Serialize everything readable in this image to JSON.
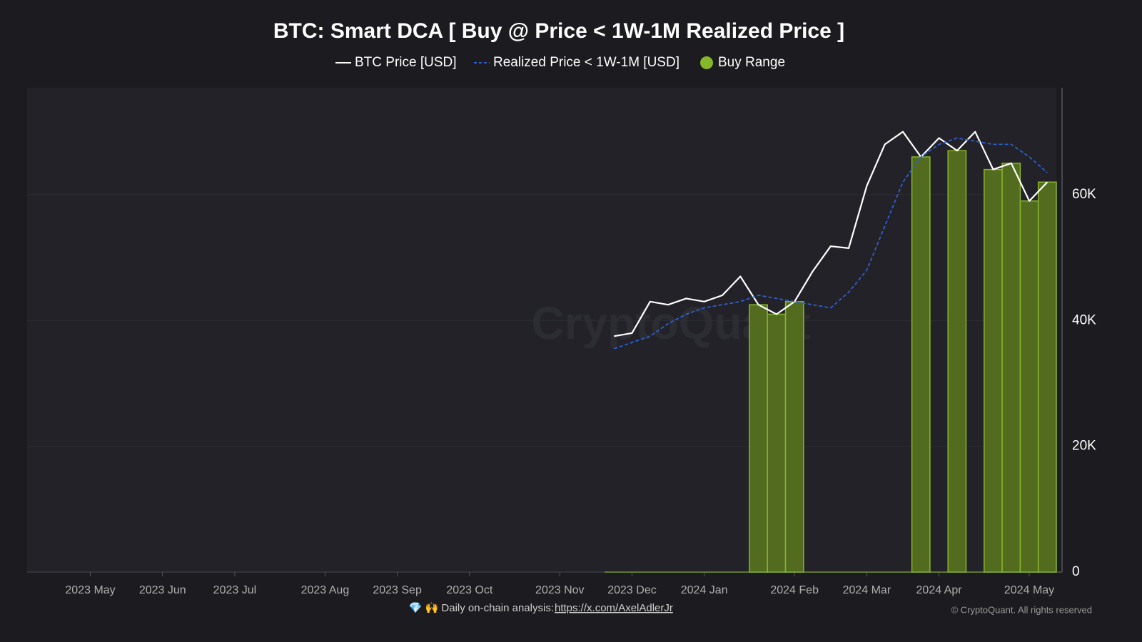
{
  "chart_data": {
    "type": "line",
    "title": "BTC: Smart DCA [ Buy @ Price < 1W-1M Realized Price ]",
    "watermark": "CryptoQuant",
    "footer": {
      "prefix": "💎 🙌  Daily on-chain analysis: ",
      "link": "https://x.com/AxelAdlerJr",
      "copyright": "© CryptoQuant. All rights reserved"
    },
    "categories": [
      null,
      null,
      null,
      "2023 May",
      null,
      null,
      null,
      "2023 Jun",
      null,
      null,
      null,
      "2023 Jul",
      null,
      null,
      null,
      null,
      "2023 Aug",
      null,
      null,
      null,
      "2023 Sep",
      null,
      null,
      null,
      "2023 Oct",
      null,
      null,
      null,
      null,
      "2023 Nov",
      null,
      null,
      null,
      "2023 Dec",
      null,
      null,
      null,
      "2024 Jan",
      null,
      null,
      null,
      null,
      "2024 Feb",
      null,
      null,
      null,
      "2024 Mar",
      null,
      null,
      null,
      "2024 Apr",
      null,
      null,
      null,
      null,
      "2024 May",
      null
    ],
    "series": [
      {
        "name": "BTC Price [USD]",
        "color": "#ffffff",
        "style": "solid",
        "values": [
          null,
          null,
          null,
          null,
          null,
          null,
          null,
          null,
          null,
          null,
          null,
          null,
          null,
          null,
          null,
          null,
          null,
          null,
          null,
          null,
          null,
          null,
          null,
          null,
          null,
          null,
          null,
          null,
          null,
          null,
          null,
          null,
          37500,
          38000,
          43000,
          42500,
          43500,
          43000,
          44000,
          47000,
          42500,
          41000,
          43000,
          47800,
          51800,
          51500,
          61400,
          68000,
          70000,
          66000,
          69000,
          67000,
          70000,
          64000,
          65000,
          59000,
          62000
        ]
      },
      {
        "name": "Realized Price < 1W-1M [USD]",
        "color": "#2f5fd0",
        "style": "dashed",
        "values": [
          null,
          null,
          null,
          null,
          null,
          null,
          null,
          null,
          null,
          null,
          null,
          null,
          null,
          null,
          null,
          null,
          null,
          null,
          null,
          null,
          null,
          null,
          null,
          null,
          null,
          null,
          null,
          null,
          null,
          null,
          null,
          null,
          35500,
          36500,
          37500,
          39500,
          41000,
          42000,
          42500,
          43000,
          44000,
          43500,
          43000,
          42500,
          42000,
          44500,
          48000,
          55000,
          62000,
          66000,
          68000,
          69000,
          68500,
          68000,
          68000,
          66000,
          63500
        ]
      },
      {
        "name": "Buy Range",
        "color": "#86b62a",
        "style": "area",
        "values": [
          null,
          null,
          null,
          null,
          null,
          null,
          null,
          null,
          null,
          null,
          null,
          null,
          null,
          null,
          null,
          null,
          null,
          null,
          null,
          null,
          null,
          null,
          null,
          null,
          null,
          null,
          null,
          null,
          null,
          null,
          null,
          null,
          0,
          0,
          0,
          0,
          0,
          0,
          0,
          0,
          42500,
          41000,
          43000,
          0,
          0,
          0,
          0,
          0,
          0,
          66000,
          0,
          67000,
          0,
          64000,
          65000,
          59000,
          62000
        ]
      }
    ],
    "ylim": [
      0,
      77000
    ],
    "yticks": [
      {
        "value": 0,
        "label": "0"
      },
      {
        "value": 20000,
        "label": "20K"
      },
      {
        "value": 40000,
        "label": "40K"
      },
      {
        "value": 60000,
        "label": "60K"
      }
    ],
    "grid": true,
    "legend": "top"
  }
}
